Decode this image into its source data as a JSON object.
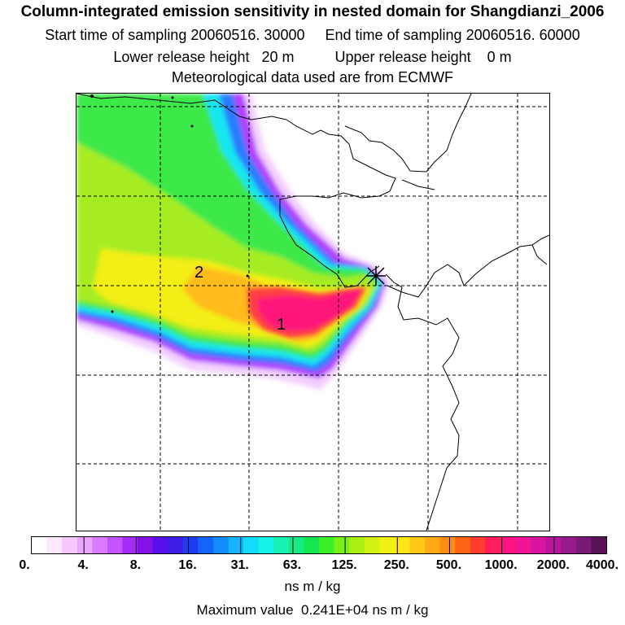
{
  "header": {
    "title": "Column-integrated emission sensitivity in nested domain for Shangdianzi_2006",
    "sampling": "Start time of sampling 20060516. 30000     End time of sampling 20060516. 60000",
    "release": "Lower release height   20 m          Upper release height    0 m",
    "met": "Meteorological data used are from ECMWF"
  },
  "map": {
    "labels": [
      {
        "text": "1"
      },
      {
        "text": "2"
      }
    ],
    "receptor_marker": "star-marker"
  },
  "legend": {
    "colors": [
      "#ffffff",
      "#fce8ff",
      "#f5c8ff",
      "#eaa6ff",
      "#d97cff",
      "#c352ff",
      "#a52cf6",
      "#8412e6",
      "#5a10e8",
      "#3c1ee6",
      "#1e3cf0",
      "#1464f8",
      "#148cff",
      "#14b4ff",
      "#14dcff",
      "#16f2e6",
      "#18f0b4",
      "#16ea82",
      "#18e650",
      "#3cf028",
      "#78f018",
      "#aaf014",
      "#d2f014",
      "#f0f014",
      "#ffe614",
      "#ffc814",
      "#ffaa14",
      "#ff8c14",
      "#ff6414",
      "#ff3c2e",
      "#ff1e5a",
      "#ff1482",
      "#f01496",
      "#d814a0",
      "#b8149e",
      "#961a8c",
      "#7a1a78",
      "#5a1256"
    ],
    "ticks": [
      "0.",
      "4.",
      "8.",
      "16.",
      "31.",
      "63.",
      "125.",
      "250.",
      "500.",
      "1000.",
      "2000.",
      "4000."
    ],
    "unit": "ns m / kg"
  },
  "footer": {
    "max_value": "Maximum value  0.241E+04 ns m / kg"
  }
}
